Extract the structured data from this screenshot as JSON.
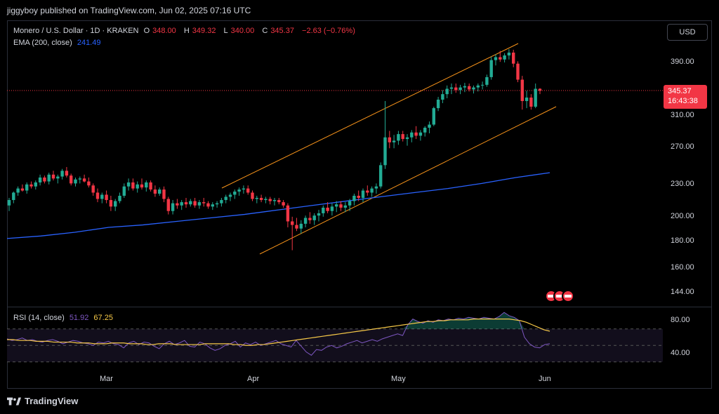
{
  "header": {
    "publisher": "jiggyboy published on TradingView.com, Jun 02, 2025 07:16 UTC"
  },
  "legend": {
    "symbol": "Monero / U.S. Dollar · 1D · KRAKEN",
    "o_label": "O",
    "o_value": "348.00",
    "h_label": "H",
    "h_value": "349.32",
    "l_label": "L",
    "l_value": "340.00",
    "c_label": "C",
    "c_value": "345.37",
    "change": "−2.63 (−0.76%)",
    "ema_label": "EMA (200, close)",
    "ema_value": "241.49",
    "rsi_label": "RSI (14, close)",
    "rsi_value": "51.92",
    "rsi_ma_value": "67.25"
  },
  "currency_button": "USD",
  "price_tag": {
    "price": "345.37",
    "countdown": "16:43:38"
  },
  "footer": {
    "brand": "TradingView"
  },
  "colors": {
    "up": "#22ab94",
    "down": "#f23645",
    "ema": "#2962ff",
    "channel": "#f7931a",
    "rsi": "#7e57c2",
    "rsi_ma": "#f7c948"
  },
  "chart_data": {
    "type": "candlestick",
    "price_axis": {
      "ticks": [
        "390.00",
        "310.00",
        "270.00",
        "230.00",
        "200.00",
        "180.00",
        "160.00",
        "144.00"
      ],
      "scale": "log"
    },
    "rsi_axis": {
      "ticks": [
        "80.00",
        "40.00"
      ],
      "bands": [
        70,
        50,
        30
      ]
    },
    "time_axis": {
      "labels": [
        "Mar",
        "Apr",
        "May",
        "Jun"
      ]
    },
    "candles": [
      [
        210,
        217,
        205,
        215
      ],
      [
        215,
        223,
        212,
        222
      ],
      [
        222,
        228,
        219,
        226
      ],
      [
        226,
        230,
        223,
        224
      ],
      [
        224,
        232,
        221,
        230
      ],
      [
        230,
        233,
        226,
        228
      ],
      [
        228,
        234,
        225,
        232
      ],
      [
        232,
        240,
        229,
        237
      ],
      [
        237,
        239,
        231,
        233
      ],
      [
        233,
        242,
        230,
        240
      ],
      [
        240,
        244,
        234,
        236
      ],
      [
        236,
        240,
        231,
        238
      ],
      [
        238,
        246,
        235,
        244
      ],
      [
        244,
        248,
        237,
        239
      ],
      [
        239,
        241,
        229,
        231
      ],
      [
        231,
        237,
        228,
        235
      ],
      [
        235,
        238,
        231,
        236
      ],
      [
        236,
        240,
        232,
        233
      ],
      [
        233,
        237,
        227,
        229
      ],
      [
        229,
        231,
        219,
        222
      ],
      [
        222,
        226,
        213,
        216
      ],
      [
        216,
        222,
        212,
        220
      ],
      [
        220,
        224,
        212,
        215
      ],
      [
        215,
        219,
        205,
        209
      ],
      [
        209,
        216,
        205,
        214
      ],
      [
        214,
        222,
        212,
        219
      ],
      [
        219,
        231,
        217,
        228
      ],
      [
        228,
        236,
        224,
        232
      ],
      [
        232,
        236,
        224,
        226
      ],
      [
        226,
        233,
        222,
        230
      ],
      [
        230,
        236,
        225,
        227
      ],
      [
        227,
        234,
        223,
        232
      ],
      [
        232,
        234,
        223,
        225
      ],
      [
        225,
        229,
        218,
        221
      ],
      [
        221,
        227,
        219,
        225
      ],
      [
        225,
        228,
        213,
        216
      ],
      [
        216,
        218,
        202,
        205
      ],
      [
        205,
        215,
        202,
        212
      ],
      [
        212,
        216,
        207,
        210
      ],
      [
        210,
        215,
        206,
        213
      ],
      [
        213,
        217,
        208,
        211
      ],
      [
        211,
        216,
        209,
        214
      ],
      [
        214,
        217,
        208,
        210
      ],
      [
        210,
        215,
        207,
        213
      ],
      [
        213,
        217,
        209,
        212
      ],
      [
        212,
        214,
        207,
        209
      ],
      [
        209,
        213,
        206,
        211
      ],
      [
        211,
        214,
        208,
        212
      ],
      [
        212,
        217,
        209,
        215
      ],
      [
        215,
        220,
        212,
        218
      ],
      [
        218,
        222,
        214,
        220
      ],
      [
        220,
        225,
        216,
        223
      ],
      [
        223,
        227,
        219,
        225
      ],
      [
        225,
        229,
        221,
        226
      ],
      [
        226,
        229,
        220,
        222
      ],
      [
        222,
        224,
        214,
        216
      ],
      [
        216,
        219,
        212,
        217
      ],
      [
        217,
        220,
        213,
        215
      ],
      [
        215,
        218,
        212,
        216
      ],
      [
        216,
        218,
        211,
        214
      ],
      [
        214,
        217,
        210,
        215
      ],
      [
        215,
        217,
        211,
        213
      ],
      [
        213,
        215,
        208,
        210
      ],
      [
        210,
        212,
        191,
        196
      ],
      [
        196,
        200,
        173,
        193
      ],
      [
        193,
        199,
        188,
        190
      ],
      [
        190,
        197,
        186,
        194
      ],
      [
        194,
        201,
        191,
        199
      ],
      [
        199,
        204,
        194,
        197
      ],
      [
        197,
        203,
        193,
        201
      ],
      [
        201,
        206,
        196,
        203
      ],
      [
        203,
        210,
        200,
        208
      ],
      [
        208,
        213,
        203,
        205
      ],
      [
        205,
        212,
        201,
        209
      ],
      [
        209,
        214,
        204,
        211
      ],
      [
        211,
        214,
        205,
        208
      ],
      [
        208,
        213,
        204,
        210
      ],
      [
        210,
        216,
        205,
        214
      ],
      [
        214,
        221,
        210,
        219
      ],
      [
        219,
        224,
        214,
        217
      ],
      [
        217,
        226,
        213,
        224
      ],
      [
        224,
        229,
        219,
        222
      ],
      [
        222,
        228,
        218,
        226
      ],
      [
        226,
        231,
        221,
        228
      ],
      [
        228,
        253,
        226,
        250
      ],
      [
        250,
        330,
        246,
        282
      ],
      [
        282,
        290,
        269,
        276
      ],
      [
        276,
        285,
        269,
        278
      ],
      [
        278,
        290,
        273,
        286
      ],
      [
        286,
        290,
        277,
        280
      ],
      [
        280,
        286,
        272,
        282
      ],
      [
        282,
        291,
        276,
        288
      ],
      [
        288,
        296,
        280,
        284
      ],
      [
        284,
        291,
        278,
        288
      ],
      [
        288,
        296,
        283,
        294
      ],
      [
        294,
        302,
        287,
        298
      ],
      [
        298,
        322,
        296,
        320
      ],
      [
        320,
        336,
        316,
        332
      ],
      [
        332,
        346,
        327,
        340
      ],
      [
        340,
        353,
        334,
        348
      ],
      [
        348,
        356,
        340,
        350
      ],
      [
        350,
        356,
        342,
        346
      ],
      [
        346,
        354,
        340,
        350
      ],
      [
        350,
        357,
        343,
        352
      ],
      [
        352,
        356,
        344,
        347
      ],
      [
        347,
        353,
        341,
        350
      ],
      [
        350,
        356,
        344,
        353
      ],
      [
        353,
        359,
        347,
        354
      ],
      [
        354,
        370,
        351,
        366
      ],
      [
        366,
        400,
        362,
        394
      ],
      [
        394,
        404,
        385,
        399
      ],
      [
        399,
        410,
        391,
        395
      ],
      [
        395,
        406,
        390,
        402
      ],
      [
        402,
        413,
        395,
        407
      ],
      [
        407,
        412,
        382,
        388
      ],
      [
        388,
        392,
        358,
        362
      ],
      [
        362,
        368,
        318,
        330
      ],
      [
        330,
        345,
        320,
        335
      ],
      [
        335,
        340,
        318,
        322
      ],
      [
        322,
        356,
        320,
        348
      ],
      [
        348,
        349,
        340,
        345
      ]
    ],
    "ema": [
      182,
      184,
      187,
      191,
      193,
      196,
      199,
      202,
      206,
      210,
      214,
      218,
      222,
      226,
      231,
      237,
      242
    ],
    "rsi": [
      58,
      56,
      57,
      59,
      56,
      57,
      55,
      54,
      56,
      57,
      55,
      52,
      54,
      56,
      55,
      53,
      52,
      50,
      54,
      53,
      55,
      52,
      51,
      47,
      53,
      55,
      51,
      54,
      53,
      49,
      46,
      52,
      55,
      51,
      53,
      56,
      49,
      48,
      54,
      52,
      47,
      44,
      46,
      50,
      52,
      55,
      48,
      53,
      51,
      54,
      50,
      52,
      54,
      56,
      52,
      50,
      48,
      56,
      49,
      42,
      38,
      45,
      44,
      48,
      50,
      47,
      49,
      52,
      54,
      56,
      53,
      55,
      57,
      55,
      58,
      60,
      62,
      64,
      62,
      75,
      82,
      79,
      77,
      80,
      78,
      81,
      80,
      82,
      81,
      83,
      82,
      84,
      83,
      82,
      84,
      83,
      82,
      85,
      90,
      86,
      84,
      80,
      60,
      52,
      48,
      47,
      51,
      52
    ],
    "rsi_ma": [
      57,
      57,
      56,
      56,
      56,
      55,
      55,
      55,
      54,
      54,
      54,
      54,
      53,
      53,
      53,
      52,
      52,
      52,
      53,
      53,
      53,
      52,
      52,
      52,
      51,
      51,
      52,
      52,
      52,
      51,
      51,
      51,
      51,
      51,
      52,
      52,
      52,
      52,
      52,
      51,
      51,
      50,
      50,
      51,
      51,
      52,
      53,
      54,
      55,
      56,
      57,
      58,
      59,
      60,
      61,
      62,
      63,
      64,
      65,
      66,
      67,
      68,
      69,
      70,
      71,
      72,
      73,
      74,
      75,
      76,
      77,
      78,
      79,
      79,
      80,
      80,
      81,
      81,
      81,
      81,
      82,
      82,
      82,
      82,
      82,
      82,
      82,
      81,
      80,
      78,
      75,
      72,
      69,
      67.25
    ]
  }
}
